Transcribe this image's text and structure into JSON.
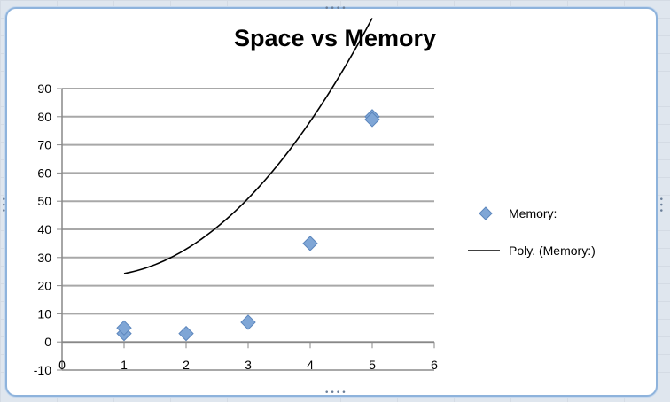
{
  "chart_data": {
    "type": "scatter",
    "title": "Space vs Memory",
    "xlabel": "",
    "ylabel": "",
    "xlim": [
      0,
      6
    ],
    "ylim": [
      -10,
      90
    ],
    "x_ticks": [
      0,
      1,
      2,
      3,
      4,
      5,
      6
    ],
    "y_ticks": [
      -10,
      0,
      10,
      20,
      30,
      40,
      50,
      60,
      70,
      80,
      90
    ],
    "grid": "horizontal",
    "legend_position": "right",
    "series": [
      {
        "name": "Memory:",
        "kind": "markers",
        "marker": "diamond",
        "color": "#7fa6d6",
        "points": [
          {
            "x": 1,
            "y": 3
          },
          {
            "x": 1,
            "y": 5
          },
          {
            "x": 2,
            "y": 3
          },
          {
            "x": 3,
            "y": 7
          },
          {
            "x": 4,
            "y": 35
          },
          {
            "x": 5,
            "y": 80
          },
          {
            "x": 5,
            "y": 79
          }
        ]
      },
      {
        "name": "Poly. (Memory:)",
        "kind": "trendline",
        "order": 2,
        "color": "#000000",
        "x_range": [
          1,
          5
        ],
        "coefficients": [
          4.67,
          -5.35,
          25.0
        ]
      }
    ]
  }
}
